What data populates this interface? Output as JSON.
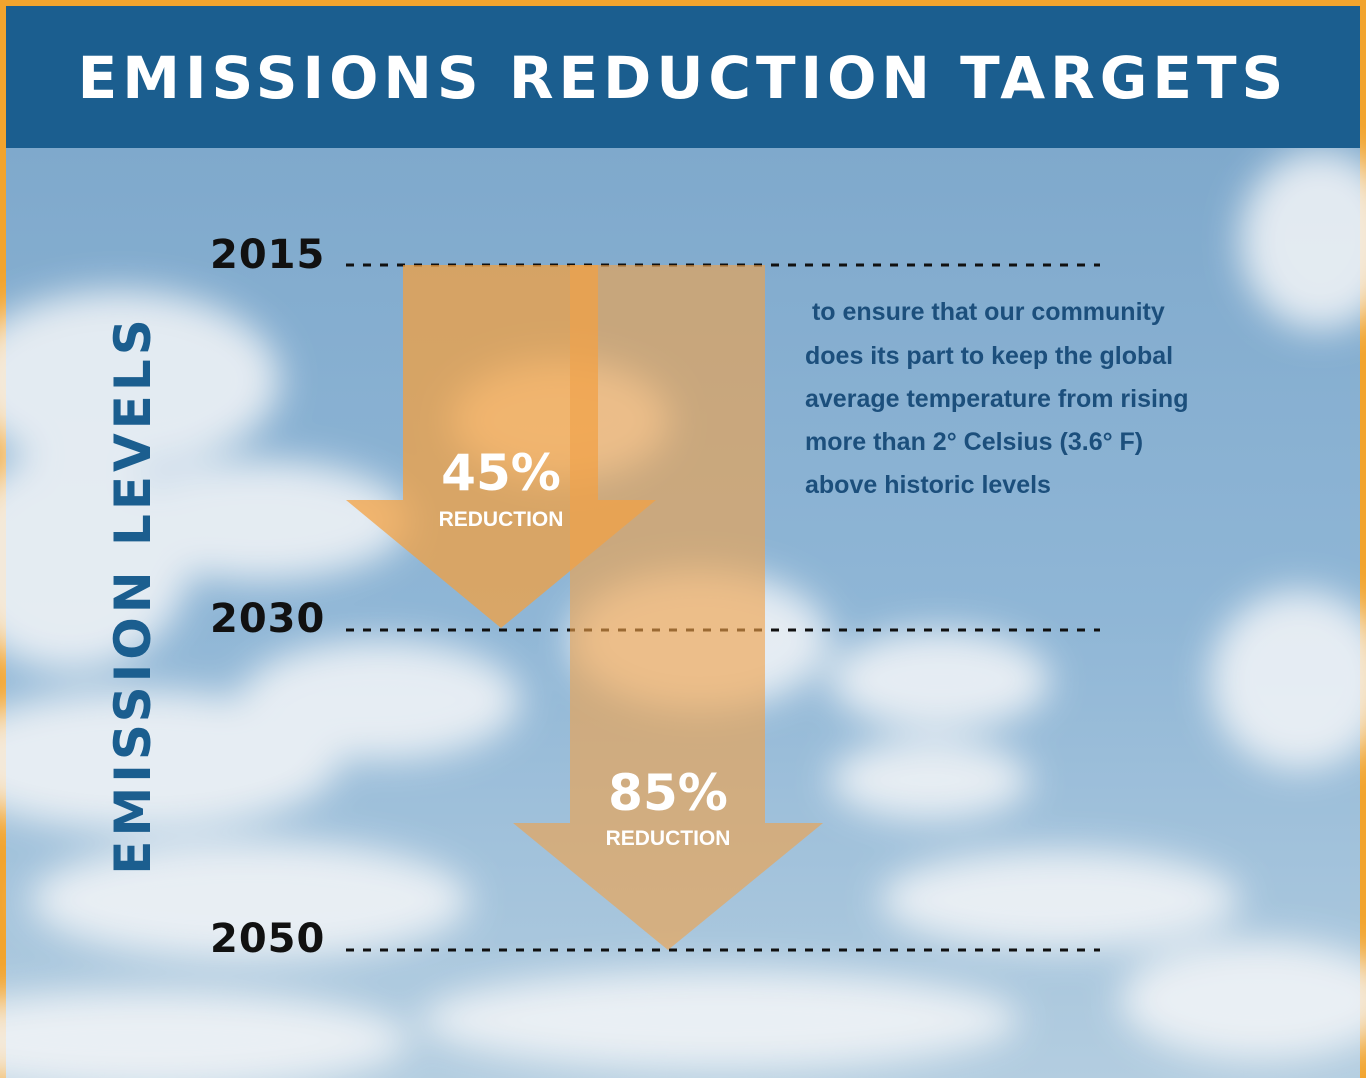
{
  "header": {
    "title": "EMISSIONS REDUCTION TARGETS"
  },
  "axis_label": "EMISSION LEVELS",
  "years": [
    "2015",
    "2030",
    "2050"
  ],
  "arrows": [
    {
      "percent": "45%",
      "label": "REDUCTION"
    },
    {
      "percent": "85%",
      "label": "REDUCTION"
    }
  ],
  "description": [
    " to ensure that our community",
    "does its part to keep the global",
    "average temperature from rising",
    "more than 2° Celsius (3.6° F)",
    "above historic levels"
  ]
}
